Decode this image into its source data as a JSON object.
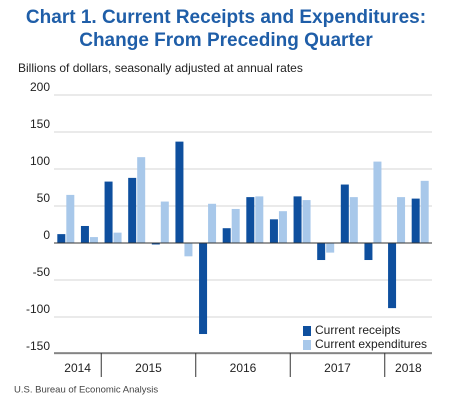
{
  "chart_data": {
    "type": "bar",
    "title": [
      "Chart 1. Current Receipts and Expenditures:",
      "Change From Preceding Quarter"
    ],
    "subtitle": "Billions of dollars, seasonally adjusted at annual rates",
    "source": "U.S. Bureau of Economic Analysis",
    "categories": [
      "2014",
      null,
      "2015",
      null,
      null,
      null,
      "2016",
      null,
      null,
      null,
      "2017",
      null,
      null,
      null,
      "2018",
      null
    ],
    "series": [
      {
        "name": "Current receipts",
        "color": "#0e4f9e",
        "values": [
          12,
          23,
          83,
          88,
          -2,
          137,
          -123,
          20,
          62,
          32,
          63,
          -23,
          79,
          -23,
          -88,
          60
        ]
      },
      {
        "name": "Current expenditures",
        "color": "#a8c8ea",
        "values": [
          65,
          8,
          14,
          116,
          56,
          -18,
          53,
          46,
          63,
          43,
          58,
          -13,
          62,
          110,
          62,
          84
        ]
      }
    ],
    "ylim": [
      -150,
      200
    ],
    "yticks": [
      -150,
      -100,
      -50,
      0,
      50,
      100,
      150,
      200
    ],
    "grid": true,
    "legend": "lower right"
  }
}
